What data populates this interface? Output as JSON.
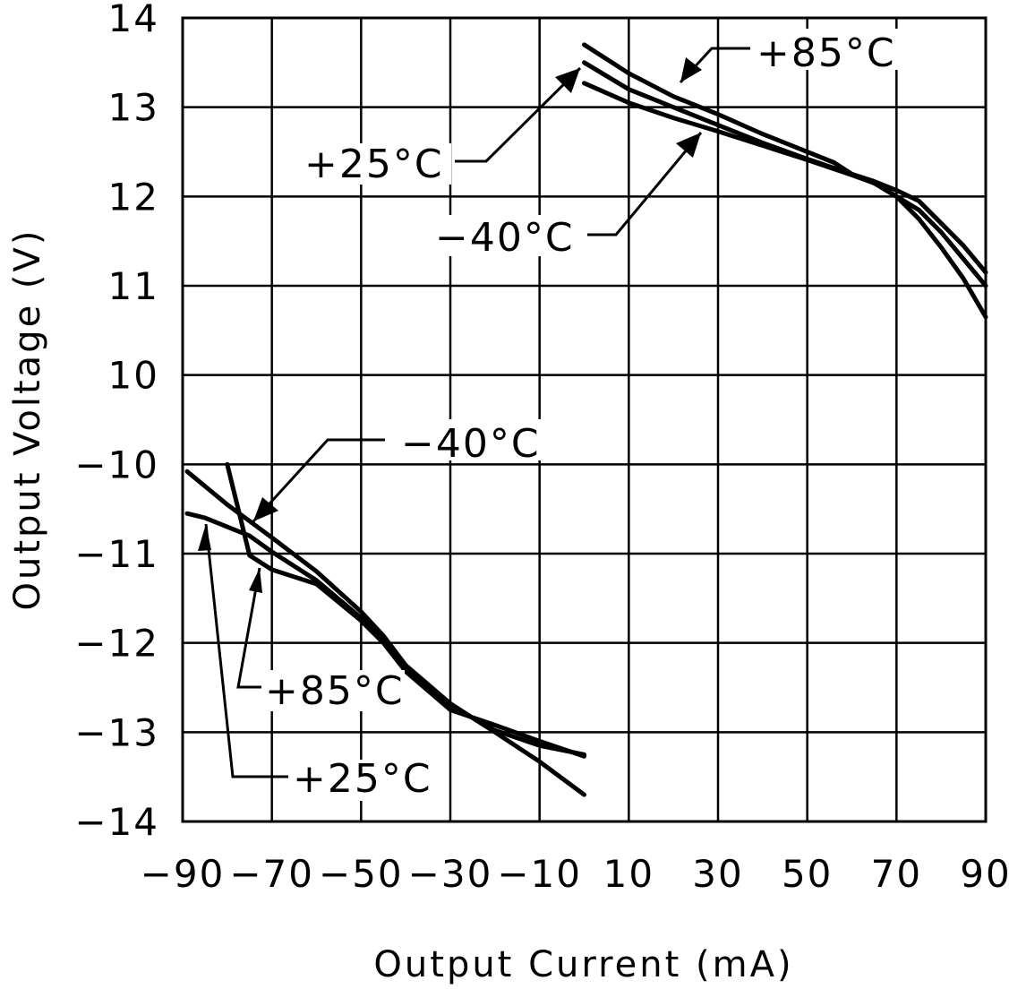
{
  "chart_data": {
    "type": "line",
    "title": "",
    "xlabel": "Output Current (mA)",
    "ylabel": "Output Voltage (V)",
    "grid": true,
    "xlim": [
      -90,
      90
    ],
    "x_ticks": [
      -90,
      -70,
      -50,
      -30,
      -10,
      10,
      30,
      50,
      70,
      90
    ],
    "x_tick_labels": [
      "−90",
      "−70",
      "−50",
      "−30",
      "−10",
      "10",
      "30",
      "50",
      "70",
      "90"
    ],
    "y_tick_labels": [
      "14",
      "13",
      "12",
      "11",
      "10",
      "−10",
      "−11",
      "−12",
      "−13",
      "−14"
    ],
    "y_note": "Broken axis: upper half spans 10 to 14 V, lower half spans -10 to -14 V",
    "series": [
      {
        "name": "+85°C (source)",
        "x": [
          0,
          10,
          20,
          30,
          40,
          50,
          56,
          60,
          65,
          70,
          75,
          80,
          85,
          90
        ],
        "y": [
          13.7,
          13.38,
          13.12,
          12.92,
          12.7,
          12.5,
          12.38,
          12.25,
          12.15,
          12.0,
          11.85,
          11.6,
          11.3,
          11.0
        ]
      },
      {
        "name": "+25°C (source)",
        "x": [
          0,
          10,
          20,
          30,
          40,
          50,
          60,
          65,
          70,
          75,
          80,
          85,
          90
        ],
        "y": [
          13.5,
          13.2,
          13.0,
          12.8,
          12.6,
          12.42,
          12.25,
          12.17,
          12.07,
          11.95,
          11.7,
          11.45,
          11.15
        ]
      },
      {
        "name": "−40°C (source)",
        "x": [
          0,
          10,
          20,
          30,
          40,
          50,
          60,
          65,
          70,
          75,
          80,
          85,
          90
        ],
        "y": [
          13.27,
          13.05,
          12.88,
          12.73,
          12.57,
          12.41,
          12.24,
          12.15,
          12.0,
          11.75,
          11.43,
          11.08,
          10.65
        ]
      },
      {
        "name": "+85°C (sink)",
        "x": [
          -80,
          -75,
          -70,
          -60,
          -50,
          -45,
          -40,
          -30,
          -20,
          -10,
          0
        ],
        "y": [
          -10.0,
          -11.02,
          -11.18,
          -11.34,
          -11.75,
          -12.0,
          -12.32,
          -12.75,
          -12.92,
          -13.1,
          -13.27
        ]
      },
      {
        "name": "+25°C (sink)",
        "x": [
          -89,
          -85,
          -75,
          -70,
          -60,
          -50,
          -45,
          -40,
          -30,
          -20,
          -10,
          -5,
          0
        ],
        "y": [
          -10.55,
          -10.6,
          -10.8,
          -10.98,
          -11.3,
          -11.72,
          -11.97,
          -12.27,
          -12.7,
          -12.98,
          -13.15,
          -13.2,
          -13.25
        ]
      },
      {
        "name": "−40°C (sink)",
        "x": [
          -89,
          -80,
          -70,
          -60,
          -50,
          -45,
          -40,
          -30,
          -20,
          -10,
          0
        ],
        "y": [
          -10.08,
          -10.45,
          -10.82,
          -11.2,
          -11.65,
          -11.92,
          -12.25,
          -12.68,
          -13.0,
          -13.33,
          -13.7
        ]
      }
    ]
  },
  "annotations": {
    "top_85": "+85°C",
    "top_25": "+25°C",
    "top_40": "−40°C",
    "bot_40": "−40°C",
    "bot_85": "+85°C",
    "bot_25": "+25°C"
  }
}
